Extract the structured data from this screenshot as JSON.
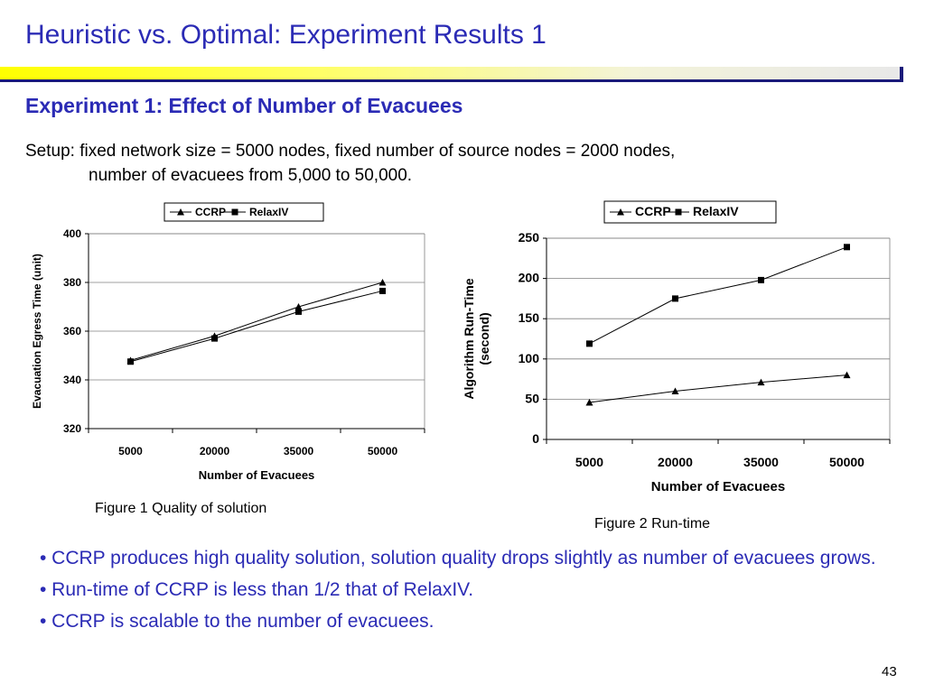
{
  "slide": {
    "title": "Heuristic vs. Optimal: Experiment Results 1",
    "subtitle": "Experiment 1: Effect of Number of Evacuees",
    "setup_line1": "Setup: fixed network size = 5000 nodes, fixed number of source nodes = 2000 nodes,",
    "setup_line2": "number of evacuees from  5,000 to 50,000.",
    "figure1_caption": "Figure 1 Quality of solution",
    "figure2_caption": "Figure 2  Run-time",
    "bullets": [
      "• CCRP produces high quality solution, solution quality drops slightly as number of evacuees grows.",
      "• Run-time of CCRP is less than 1/2 that of RelaxIV.",
      "• CCRP is scalable to the number of evacuees."
    ],
    "page_number": "43",
    "colors": {
      "title": "#2b2bb5",
      "text": "#000000",
      "bullets": "#2b2bb5"
    }
  },
  "chart_data": [
    {
      "type": "line",
      "categories": [
        "5000",
        "20000",
        "35000",
        "50000"
      ],
      "series": [
        {
          "name": "CCRP",
          "marker": "triangle",
          "values": [
            348,
            358,
            370,
            380
          ]
        },
        {
          "name": "RelaxIV",
          "marker": "square",
          "values": [
            347.5,
            357,
            368,
            376.5
          ]
        }
      ],
      "xlabel": "Number of Evacuees",
      "ylabel": "Evacuation Egress Time (unit)",
      "ylim": [
        320,
        400
      ],
      "yticks": [
        320,
        340,
        360,
        380,
        400
      ],
      "grid": true,
      "legend": "top"
    },
    {
      "type": "line",
      "categories": [
        "5000",
        "20000",
        "35000",
        "50000"
      ],
      "series": [
        {
          "name": "CCRP",
          "marker": "triangle",
          "values": [
            46,
            60,
            71,
            80
          ]
        },
        {
          "name": "RelaxIV",
          "marker": "square",
          "values": [
            119,
            175,
            198,
            239
          ]
        }
      ],
      "xlabel": "Number of Evacuees",
      "ylabel": [
        "Algorithm Run-Time",
        "(second)"
      ],
      "ylim": [
        0,
        250
      ],
      "yticks": [
        0,
        50,
        100,
        150,
        200,
        250
      ],
      "grid": true,
      "legend": "top"
    }
  ]
}
